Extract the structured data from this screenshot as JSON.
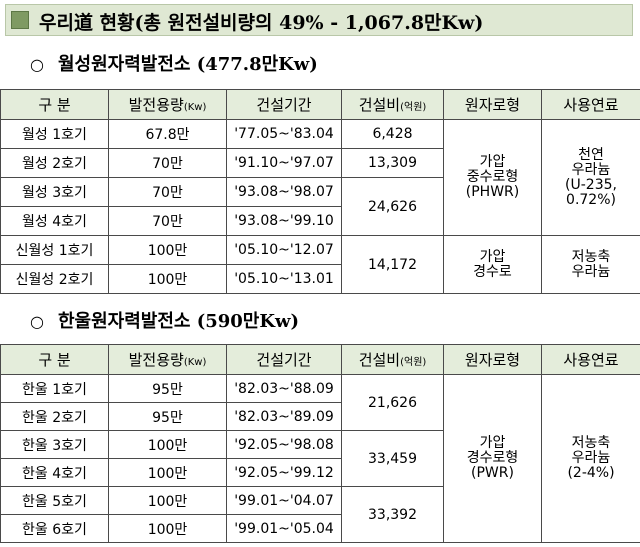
{
  "title": "우리道 현황(총 원전설비량의 49% - 1,067.8만Kw)",
  "headers": [
    "구 분",
    "발전용량",
    "(Kw)",
    "건설기간",
    "건설비",
    "(억원)",
    "원자로형",
    "사용연료"
  ],
  "wolsong": {
    "bullet": "○",
    "heading": "월성원자력발전소 (477.8만Kw)",
    "rows": [
      {
        "name": "월성 1호기",
        "capacity": "67.8만",
        "period": "'77.05~'83.04",
        "cost": "6,428"
      },
      {
        "name": "월성 2호기",
        "capacity": "70만",
        "period": "'91.10~'97.07",
        "cost": "13,309"
      },
      {
        "name": "월성 3호기",
        "capacity": "70만",
        "period": "'93.08~'98.07"
      },
      {
        "name": "월성 4호기",
        "capacity": "70만",
        "period": "'93.08~'99.10"
      },
      {
        "name": "신월성 1호기",
        "capacity": "100만",
        "period": "'05.10~'12.07"
      },
      {
        "name": "신월성 2호기",
        "capacity": "100만",
        "period": "'05.10~'13.01"
      }
    ],
    "cost_34": "24,626",
    "cost_new": "14,172",
    "reactor_a": [
      "가압",
      "중수로형",
      "(PHWR)"
    ],
    "fuel_a": [
      "천연",
      "우라늄",
      "(U-235,",
      "0.72%)"
    ],
    "reactor_b": [
      "가압",
      "경수로"
    ],
    "fuel_b": [
      "저농축",
      "우라늄"
    ]
  },
  "hanul": {
    "bullet": "○",
    "heading": "한울원자력발전소 (590만Kw)",
    "rows": [
      {
        "name": "한울 1호기",
        "capacity": "95만",
        "period": "'82.03~'88.09"
      },
      {
        "name": "한울 2호기",
        "capacity": "95만",
        "period": "'82.03~'89.09"
      },
      {
        "name": "한울 3호기",
        "capacity": "100만",
        "period": "'92.05~'98.08"
      },
      {
        "name": "한울 4호기",
        "capacity": "100만",
        "period": "'92.05~'99.12"
      },
      {
        "name": "한울 5호기",
        "capacity": "100만",
        "period": "'99.01~'04.07"
      },
      {
        "name": "한울 6호기",
        "capacity": "100만",
        "period": "'99.01~'05.04"
      }
    ],
    "cost_12": "21,626",
    "cost_34": "33,459",
    "cost_56": "33,392",
    "reactor": [
      "가압",
      "경수로형",
      "(PWR)"
    ],
    "fuel": [
      "저농축",
      "우라늄",
      "(2-4%)"
    ]
  }
}
